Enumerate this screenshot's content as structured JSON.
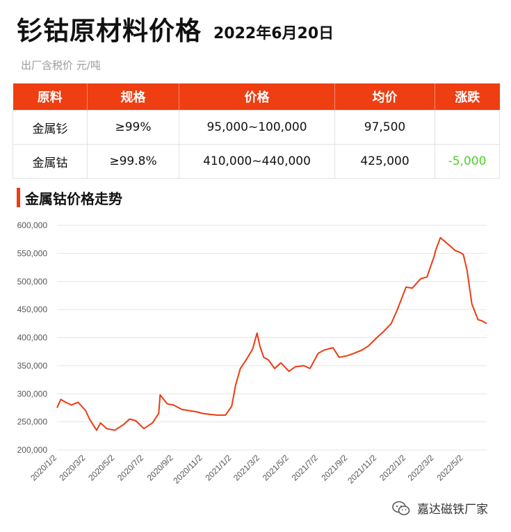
{
  "header": {
    "title": "钐钴原材料价格",
    "date": "2022年6月20日",
    "subtitle": "出厂含税价 元/吨"
  },
  "table": {
    "headers": [
      "原料",
      "规格",
      "价格",
      "均价",
      "涨跌"
    ],
    "rows": [
      [
        "金属钐",
        "≥99%",
        "95,000~100,000",
        "97,500",
        ""
      ],
      [
        "金属钴",
        "≥99.8%",
        "410,000~440,000",
        "425,000",
        "-5,000"
      ]
    ]
  },
  "section_title": "金属钴价格走势",
  "colors": {
    "accent": "#ee3e12",
    "line": "#ec3a10",
    "down": "#4fd12c"
  },
  "watermark": {
    "text": "嘉达磁铁厂家",
    "icon": "wechat-icon"
  },
  "chart_data": {
    "type": "line",
    "ylim": [
      200000,
      600000
    ],
    "yticks": [
      "200,000",
      "250,000",
      "300,000",
      "350,000",
      "400,000",
      "450,000",
      "500,000",
      "550,000",
      "600,000"
    ],
    "xticks": [
      "2020/1/2",
      "2020/3/2",
      "2020/5/2",
      "2020/7/2",
      "2020/9/2",
      "2020/11/2",
      "2021/1/2",
      "2021/3/2",
      "2021/5/2",
      "2021/7/2",
      "2021/9/2",
      "2021/11/2",
      "2022/1/2",
      "2022/3/2",
      "2022/5/2"
    ],
    "grid": true,
    "x": [
      "2020/1/2",
      "2020/1/10",
      "2020/1/20",
      "2020/2/1",
      "2020/2/15",
      "2020/3/2",
      "2020/3/10",
      "2020/3/25",
      "2020/4/2",
      "2020/4/15",
      "2020/5/2",
      "2020/5/20",
      "2020/6/2",
      "2020/6/15",
      "2020/7/2",
      "2020/7/20",
      "2020/8/2",
      "2020/8/5",
      "2020/8/20",
      "2020/9/2",
      "2020/9/20",
      "2020/10/5",
      "2020/10/20",
      "2020/11/2",
      "2020/11/20",
      "2020/12/2",
      "2020/12/20",
      "2021/1/2",
      "2021/1/10",
      "2021/1/20",
      "2021/2/1",
      "2021/2/15",
      "2021/2/24",
      "2021/3/2",
      "2021/3/10",
      "2021/3/20",
      "2021/4/2",
      "2021/4/15",
      "2021/5/2",
      "2021/5/15",
      "2021/6/2",
      "2021/6/15",
      "2021/7/2",
      "2021/7/15",
      "2021/8/2",
      "2021/8/15",
      "2021/9/2",
      "2021/9/15",
      "2021/10/2",
      "2021/10/15",
      "2021/11/2",
      "2021/11/15",
      "2021/12/2",
      "2021/12/15",
      "2022/1/2",
      "2022/1/15",
      "2022/2/2",
      "2022/2/15",
      "2022/3/2",
      "2022/3/5",
      "2022/3/15",
      "2022/4/2",
      "2022/4/15",
      "2022/4/25",
      "2022/5/2",
      "2022/5/10",
      "2022/5/20",
      "2022/6/2",
      "2022/6/10",
      "2022/6/20"
    ],
    "values": [
      275000,
      290000,
      285000,
      280000,
      285000,
      270000,
      255000,
      235000,
      248000,
      238000,
      235000,
      245000,
      255000,
      252000,
      238000,
      248000,
      265000,
      298000,
      282000,
      280000,
      272000,
      270000,
      268000,
      265000,
      263000,
      262000,
      262000,
      278000,
      315000,
      345000,
      360000,
      380000,
      408000,
      385000,
      365000,
      360000,
      345000,
      355000,
      340000,
      348000,
      350000,
      345000,
      372000,
      378000,
      382000,
      365000,
      368000,
      372000,
      378000,
      385000,
      400000,
      410000,
      425000,
      450000,
      490000,
      488000,
      505000,
      508000,
      545000,
      555000,
      578000,
      565000,
      555000,
      552000,
      548000,
      520000,
      460000,
      432000,
      430000,
      425000
    ]
  }
}
